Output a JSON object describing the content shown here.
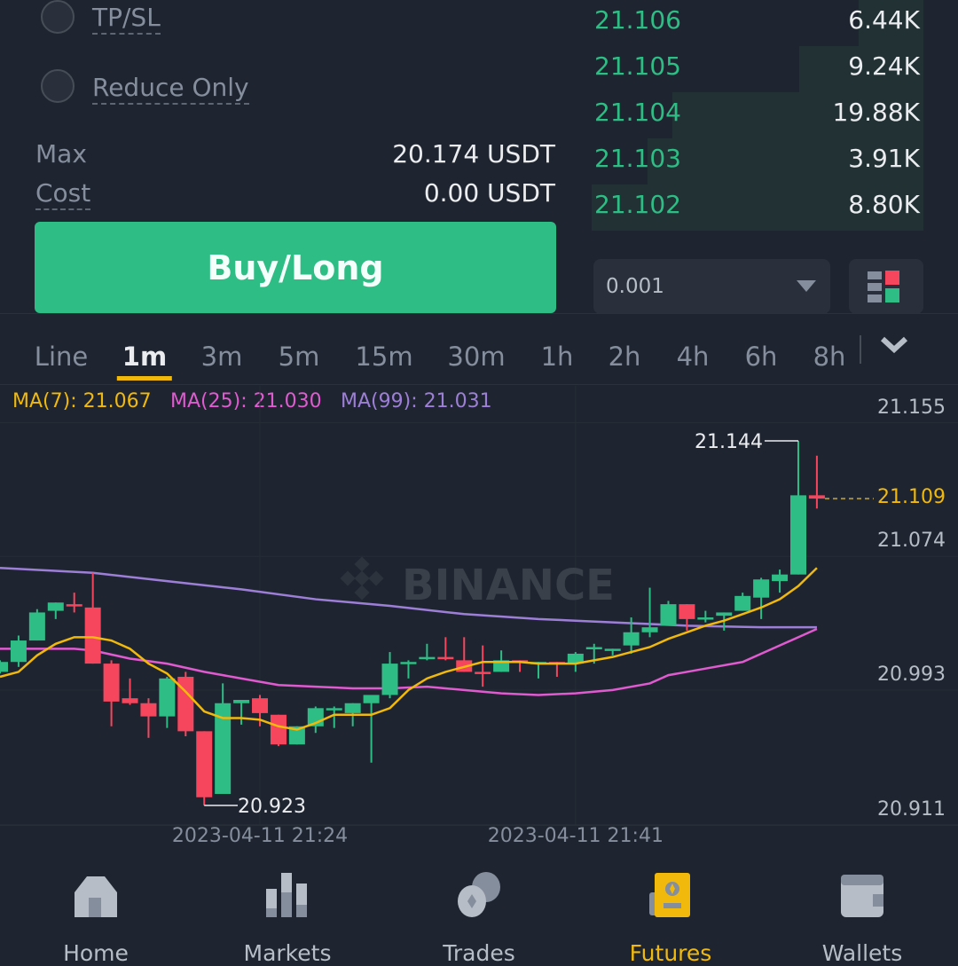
{
  "order_form": {
    "tpsl_label": "TP/SL",
    "reduce_only_label": "Reduce Only",
    "max_label": "Max",
    "max_value": "20.174 USDT",
    "cost_label": "Cost",
    "cost_value": "0.00 USDT",
    "buy_label": "Buy/Long"
  },
  "order_book": {
    "rows": [
      {
        "price": "21.106",
        "qty": "6.44K",
        "depth": 0.195
      },
      {
        "price": "21.105",
        "qty": "9.24K",
        "depth": 0.374
      },
      {
        "price": "21.104",
        "qty": "19.88K",
        "depth": 0.757
      },
      {
        "price": "21.103",
        "qty": "3.91K",
        "depth": 0.832
      },
      {
        "price": "21.102",
        "qty": "8.80K",
        "depth": 1.0
      }
    ],
    "precision_value": "0.001"
  },
  "intervals": {
    "tabs": [
      "Line",
      "1m",
      "3m",
      "5m",
      "15m",
      "30m",
      "1h",
      "2h",
      "4h",
      "6h",
      "8h"
    ],
    "active": "1m"
  },
  "indicators": {
    "ma7": "MA(7): 21.067",
    "ma25": "MA(25): 21.030",
    "ma99": "MA(99): 21.031"
  },
  "watermark": "BINANCE",
  "colors": {
    "up": "#2ebd85",
    "down": "#f6465d",
    "ma7": "#f0b90b",
    "ma25": "#e05ad0",
    "ma99": "#9e7fd8",
    "accent": "#f0b90b"
  },
  "chart_data": {
    "type": "candlestick",
    "y_ticks": [
      "21.155",
      "21.074",
      "20.993",
      "20.911"
    ],
    "x_ticks": [
      {
        "t": "21:24",
        "label": "2023-04-11 21:24"
      },
      {
        "t": "21:41",
        "label": "2023-04-11 21:41"
      }
    ],
    "ylim": [
      20.911,
      21.155
    ],
    "last_price": "21.109",
    "high_label": "21.144",
    "low_label": "20.923",
    "candles": [
      {
        "t": "21:10",
        "o": 21.004,
        "h": 21.011,
        "l": 21.003,
        "c": 21.01
      },
      {
        "t": "21:11",
        "o": 21.01,
        "h": 21.026,
        "l": 21.007,
        "c": 21.023
      },
      {
        "t": "21:12",
        "o": 21.023,
        "h": 21.042,
        "l": 21.023,
        "c": 21.04
      },
      {
        "t": "21:13",
        "o": 21.041,
        "h": 21.046,
        "l": 21.036,
        "c": 21.046
      },
      {
        "t": "21:14",
        "o": 21.045,
        "h": 21.052,
        "l": 21.04,
        "c": 21.044
      },
      {
        "t": "21:15",
        "o": 21.043,
        "h": 21.064,
        "l": 21.009,
        "c": 21.009
      },
      {
        "t": "21:16",
        "o": 21.009,
        "h": 21.011,
        "l": 20.971,
        "c": 20.986
      },
      {
        "t": "21:17",
        "o": 20.988,
        "h": 21.0,
        "l": 20.984,
        "c": 20.985
      },
      {
        "t": "21:18",
        "o": 20.985,
        "h": 20.988,
        "l": 20.964,
        "c": 20.977
      },
      {
        "t": "21:19",
        "o": 20.977,
        "h": 21.001,
        "l": 20.97,
        "c": 21.0
      },
      {
        "t": "21:20",
        "o": 21.001,
        "h": 21.004,
        "l": 20.965,
        "c": 20.968
      },
      {
        "t": "21:21",
        "o": 20.968,
        "h": 20.968,
        "l": 20.923,
        "c": 20.928
      },
      {
        "t": "21:22",
        "o": 20.93,
        "h": 20.997,
        "l": 20.93,
        "c": 20.985
      },
      {
        "t": "21:23",
        "o": 20.985,
        "h": 20.987,
        "l": 20.972,
        "c": 20.987
      },
      {
        "t": "21:24",
        "o": 20.988,
        "h": 20.99,
        "l": 20.971,
        "c": 20.979
      },
      {
        "t": "21:25",
        "o": 20.978,
        "h": 20.978,
        "l": 20.959,
        "c": 20.96
      },
      {
        "t": "21:26",
        "o": 20.96,
        "h": 20.971,
        "l": 20.96,
        "c": 20.971
      },
      {
        "t": "21:27",
        "o": 20.971,
        "h": 20.983,
        "l": 20.967,
        "c": 20.982
      },
      {
        "t": "21:28",
        "o": 20.981,
        "h": 20.983,
        "l": 20.97,
        "c": 20.982
      },
      {
        "t": "21:29",
        "o": 20.979,
        "h": 20.985,
        "l": 20.971,
        "c": 20.985
      },
      {
        "t": "21:30",
        "o": 20.985,
        "h": 20.99,
        "l": 20.949,
        "c": 20.99
      },
      {
        "t": "21:31",
        "o": 20.99,
        "h": 21.016,
        "l": 20.988,
        "c": 21.009
      },
      {
        "t": "21:32",
        "o": 21.009,
        "h": 21.011,
        "l": 21.0,
        "c": 21.01
      },
      {
        "t": "21:33",
        "o": 21.012,
        "h": 21.021,
        "l": 21.011,
        "c": 21.013
      },
      {
        "t": "21:34",
        "o": 21.013,
        "h": 21.025,
        "l": 21.011,
        "c": 21.012
      },
      {
        "t": "21:35",
        "o": 21.011,
        "h": 21.025,
        "l": 21.004,
        "c": 21.004
      },
      {
        "t": "21:36",
        "o": 21.004,
        "h": 21.02,
        "l": 20.995,
        "c": 21.003
      },
      {
        "t": "21:37",
        "o": 21.004,
        "h": 21.017,
        "l": 21.004,
        "c": 21.011
      },
      {
        "t": "21:38",
        "o": 21.011,
        "h": 21.011,
        "l": 21.004,
        "c": 21.01
      },
      {
        "t": "21:39",
        "o": 21.009,
        "h": 21.01,
        "l": 21.0,
        "c": 21.01
      },
      {
        "t": "21:40",
        "o": 21.01,
        "h": 21.01,
        "l": 21.001,
        "c": 21.009
      },
      {
        "t": "21:41",
        "o": 21.009,
        "h": 21.016,
        "l": 21.004,
        "c": 21.015
      },
      {
        "t": "21:42",
        "o": 21.018,
        "h": 21.021,
        "l": 21.009,
        "c": 21.019
      },
      {
        "t": "21:43",
        "o": 21.017,
        "h": 21.018,
        "l": 21.014,
        "c": 21.018
      },
      {
        "t": "21:44",
        "o": 21.02,
        "h": 21.037,
        "l": 21.015,
        "c": 21.028
      },
      {
        "t": "21:45",
        "o": 21.028,
        "h": 21.055,
        "l": 21.025,
        "c": 21.031
      },
      {
        "t": "21:46",
        "o": 21.032,
        "h": 21.047,
        "l": 21.032,
        "c": 21.045
      },
      {
        "t": "21:47",
        "o": 21.045,
        "h": 21.045,
        "l": 21.029,
        "c": 21.036
      },
      {
        "t": "21:48",
        "o": 21.036,
        "h": 21.041,
        "l": 21.034,
        "c": 21.037
      },
      {
        "t": "21:49",
        "o": 21.038,
        "h": 21.04,
        "l": 21.029,
        "c": 21.04
      },
      {
        "t": "21:50",
        "o": 21.041,
        "h": 21.052,
        "l": 21.041,
        "c": 21.05
      },
      {
        "t": "21:51",
        "o": 21.049,
        "h": 21.061,
        "l": 21.036,
        "c": 21.06
      },
      {
        "t": "21:52",
        "o": 21.059,
        "h": 21.066,
        "l": 21.052,
        "c": 21.063
      },
      {
        "t": "21:53",
        "o": 21.063,
        "h": 21.144,
        "l": 21.063,
        "c": 21.111
      },
      {
        "t": "21:54",
        "o": 21.111,
        "h": 21.135,
        "l": 21.103,
        "c": 21.109
      }
    ],
    "ma7": [
      21.001,
      21.004,
      21.014,
      21.021,
      21.025,
      21.025,
      21.023,
      21.018,
      21.009,
      21.003,
      20.992,
      20.98,
      20.976,
      20.976,
      20.975,
      20.971,
      20.969,
      20.973,
      20.978,
      20.978,
      20.978,
      20.982,
      20.993,
      21.0,
      21.004,
      21.007,
      21.01,
      21.01,
      21.01,
      21.009,
      21.009,
      21.009,
      21.011,
      21.013,
      21.016,
      21.019,
      21.024,
      21.028,
      21.032,
      21.035,
      21.039,
      21.043,
      21.048,
      21.056,
      21.067
    ],
    "ma25": [
      [
        "21:10",
        21.018
      ],
      [
        "21:14",
        21.018
      ],
      [
        "21:15",
        21.017
      ],
      [
        "21:17",
        21.012
      ],
      [
        "21:19",
        21.009
      ],
      [
        "21:21",
        21.004
      ],
      [
        "21:23",
        21.0
      ],
      [
        "21:25",
        20.996
      ],
      [
        "21:27",
        20.995
      ],
      [
        "21:29",
        20.994
      ],
      [
        "21:31",
        20.994
      ],
      [
        "21:33",
        20.995
      ],
      [
        "21:35",
        20.993
      ],
      [
        "21:37",
        20.991
      ],
      [
        "21:39",
        20.99
      ],
      [
        "21:41",
        20.991
      ],
      [
        "21:43",
        20.993
      ],
      [
        "21:45",
        20.997
      ],
      [
        "21:46",
        21.002
      ],
      [
        "21:48",
        21.006
      ],
      [
        "21:50",
        21.01
      ],
      [
        "21:52",
        21.02
      ],
      [
        "21:54",
        21.03
      ]
    ],
    "ma99": [
      [
        "21:10",
        21.067
      ],
      [
        "21:15",
        21.064
      ],
      [
        "21:19",
        21.059
      ],
      [
        "21:23",
        21.054
      ],
      [
        "21:27",
        21.048
      ],
      [
        "21:31",
        21.044
      ],
      [
        "21:35",
        21.039
      ],
      [
        "21:39",
        21.036
      ],
      [
        "21:43",
        21.034
      ],
      [
        "21:47",
        21.032
      ],
      [
        "21:51",
        21.031
      ],
      [
        "21:54",
        21.031
      ]
    ]
  },
  "bottom_nav": {
    "items": [
      {
        "label": "Home",
        "icon": "home-icon"
      },
      {
        "label": "Markets",
        "icon": "markets-icon"
      },
      {
        "label": "Trades",
        "icon": "trades-icon"
      },
      {
        "label": "Futures",
        "icon": "futures-icon"
      },
      {
        "label": "Wallets",
        "icon": "wallet-icon"
      }
    ],
    "active": "Futures"
  }
}
